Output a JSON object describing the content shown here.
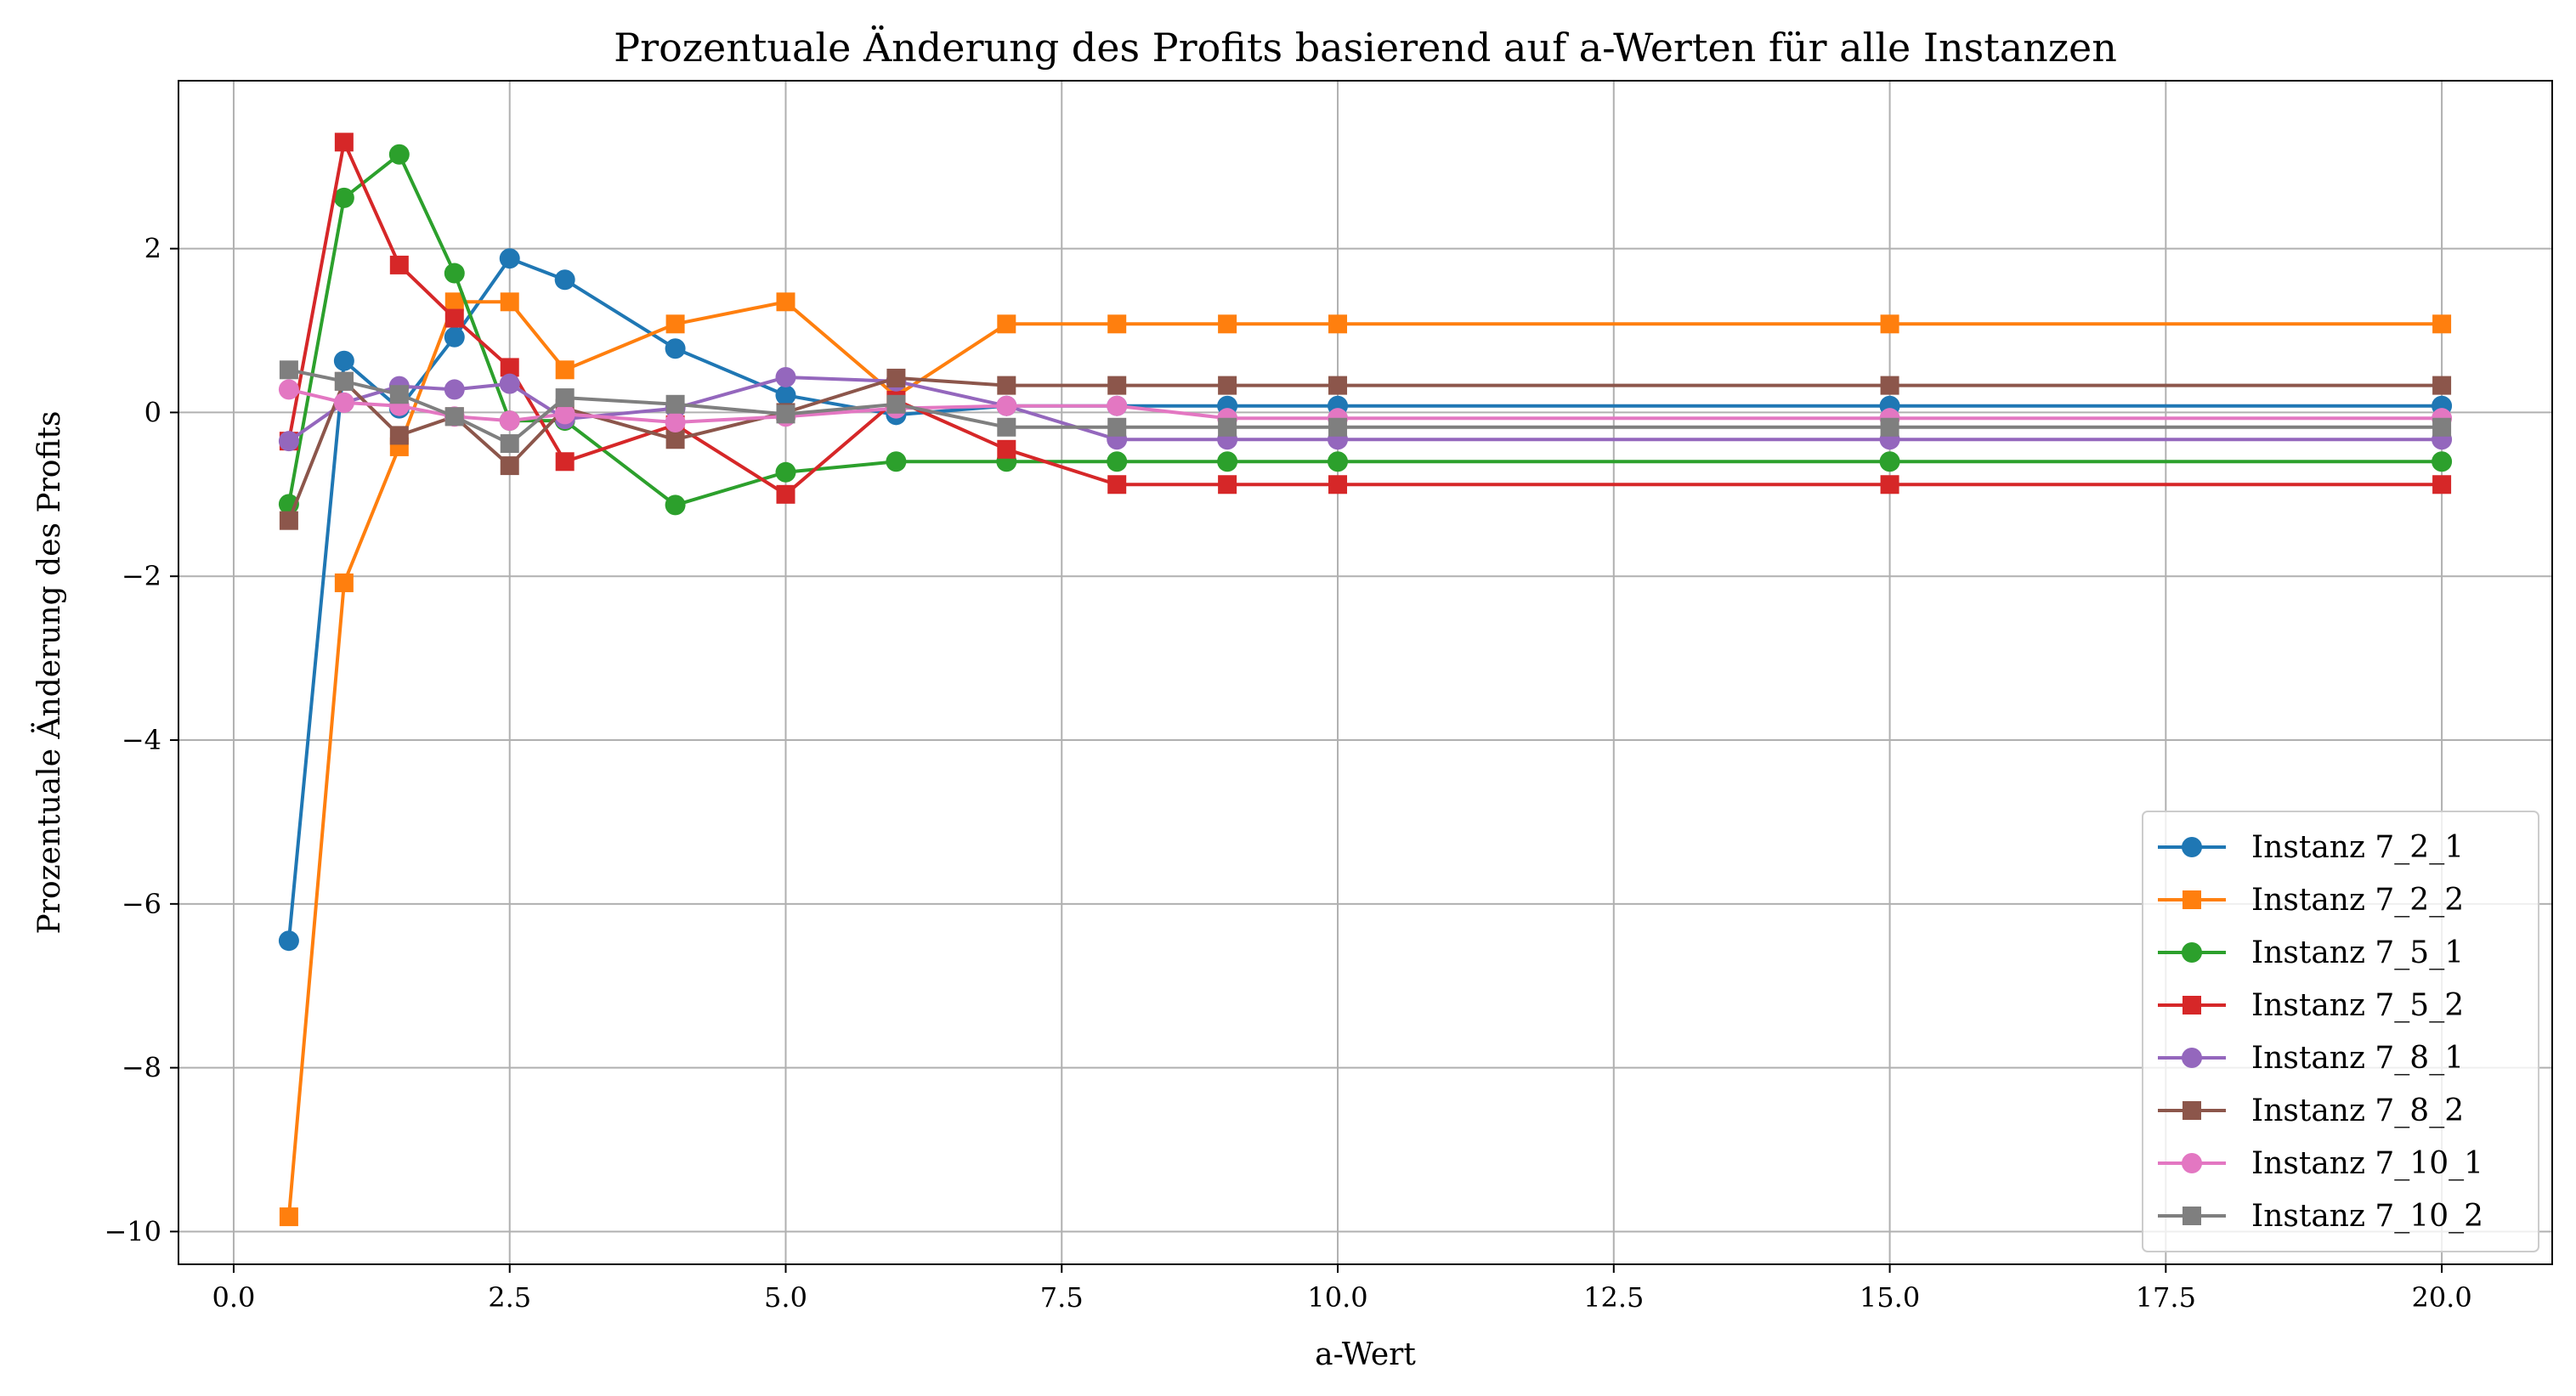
{
  "chart_data": {
    "type": "line",
    "title": "Prozentuale Änderung des Profits basierend auf a-Werten für alle Instanzen",
    "xlabel": "a-Wert",
    "ylabel": "Prozentuale Änderung des Profits",
    "xlim": [
      -0.5,
      21.0
    ],
    "ylim": [
      -10.4,
      4.05
    ],
    "xticks": [
      0.0,
      2.5,
      5.0,
      7.5,
      10.0,
      12.5,
      15.0,
      17.5,
      20.0
    ],
    "xtick_labels": [
      "0.0",
      "2.5",
      "5.0",
      "7.5",
      "10.0",
      "12.5",
      "15.0",
      "17.5",
      "20.0"
    ],
    "yticks": [
      -10,
      -8,
      -6,
      -4,
      -2,
      0,
      2
    ],
    "ytick_labels": [
      "−10",
      "−8",
      "−6",
      "−4",
      "−2",
      "0",
      "2"
    ],
    "grid": true,
    "legend_position": "lower-right",
    "x": [
      0.5,
      1,
      1.5,
      2,
      2.5,
      3,
      4,
      5,
      6,
      7,
      8,
      9,
      10,
      15,
      20
    ],
    "series": [
      {
        "name": "Instanz 7_2_1",
        "color": "#1f77b4",
        "marker": "circle",
        "values": [
          -6.45,
          0.63,
          0.05,
          0.92,
          1.88,
          1.62,
          0.78,
          0.21,
          -0.03,
          0.08,
          0.08,
          0.08,
          0.08,
          0.08,
          0.08
        ]
      },
      {
        "name": "Instanz 7_2_2",
        "color": "#ff7f0e",
        "marker": "square",
        "values": [
          -9.82,
          -2.08,
          -0.42,
          1.35,
          1.35,
          0.52,
          1.08,
          1.35,
          0.2,
          1.08,
          1.08,
          1.08,
          1.08,
          1.08,
          1.08
        ]
      },
      {
        "name": "Instanz 7_5_1",
        "color": "#2ca02c",
        "marker": "circle",
        "values": [
          -1.12,
          2.62,
          3.15,
          1.7,
          -0.1,
          -0.1,
          -1.13,
          -0.73,
          -0.6,
          -0.6,
          -0.6,
          -0.6,
          -0.6,
          -0.6,
          -0.6
        ]
      },
      {
        "name": "Instanz 7_5_2",
        "color": "#d62728",
        "marker": "square",
        "values": [
          -0.35,
          3.3,
          1.8,
          1.15,
          0.55,
          -0.6,
          -0.15,
          -1.0,
          0.15,
          -0.45,
          -0.88,
          -0.88,
          -0.88,
          -0.88,
          -0.88
        ]
      },
      {
        "name": "Instanz 7_8_1",
        "color": "#9467bd",
        "marker": "circle",
        "values": [
          -0.35,
          0.12,
          0.32,
          0.28,
          0.35,
          -0.08,
          0.05,
          0.43,
          0.38,
          0.08,
          -0.33,
          -0.33,
          -0.33,
          -0.33,
          -0.33
        ]
      },
      {
        "name": "Instanz 7_8_2",
        "color": "#8c564b",
        "marker": "square",
        "values": [
          -1.32,
          0.38,
          -0.28,
          -0.05,
          -0.65,
          0.05,
          -0.33,
          0.0,
          0.42,
          0.33,
          0.33,
          0.33,
          0.33,
          0.33,
          0.33
        ]
      },
      {
        "name": "Instanz 7_10_1",
        "color": "#e377c2",
        "marker": "circle",
        "values": [
          0.28,
          0.12,
          0.08,
          -0.05,
          -0.1,
          -0.02,
          -0.12,
          -0.05,
          0.05,
          0.08,
          0.08,
          -0.07,
          -0.07,
          -0.07,
          -0.07
        ]
      },
      {
        "name": "Instanz 7_10_2",
        "color": "#7f7f7f",
        "marker": "square",
        "values": [
          0.52,
          0.38,
          0.22,
          -0.05,
          -0.38,
          0.18,
          0.1,
          -0.02,
          0.1,
          -0.18,
          -0.18,
          -0.18,
          -0.18,
          -0.18,
          -0.18
        ]
      }
    ]
  }
}
